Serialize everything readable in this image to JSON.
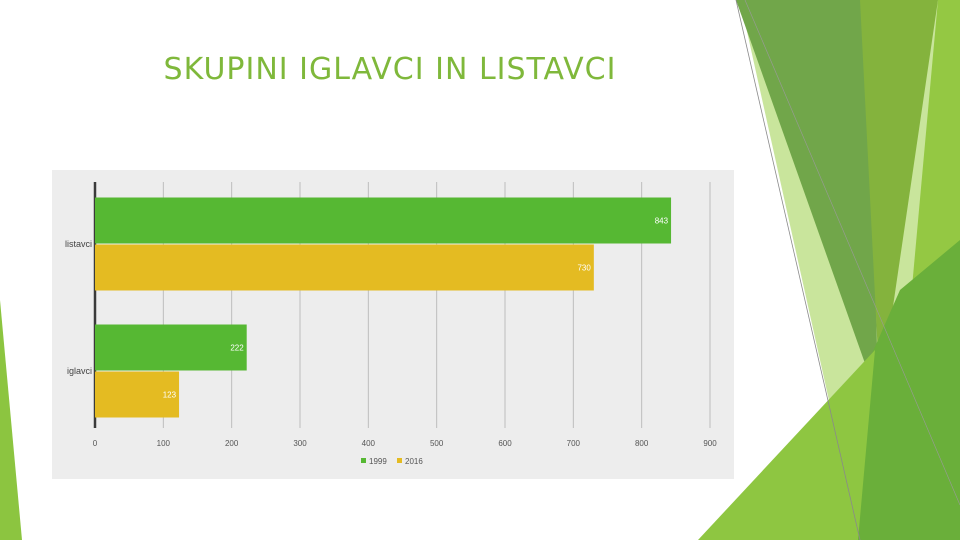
{
  "slide": {
    "title": "SKUPINI IGLAVCI IN LISTAVCI"
  },
  "theme": {
    "accent_green": "#56b833",
    "accent_gold": "#e4bb22",
    "title_color": "#7fb83b"
  },
  "chart_data": {
    "type": "bar",
    "orientation": "horizontal",
    "categories": [
      "listavci",
      "iglavci"
    ],
    "series": [
      {
        "name": "1999",
        "values": [
          843,
          222
        ],
        "color": "#56b833"
      },
      {
        "name": "2016",
        "values": [
          730,
          123
        ],
        "color": "#e4bb22"
      }
    ],
    "xlim": [
      0,
      900
    ],
    "xticks": [
      0,
      100,
      200,
      300,
      400,
      500,
      600,
      700,
      800,
      900
    ],
    "xtick_labels": [
      "0",
      "100",
      "200",
      "300",
      "400",
      "500",
      "600",
      "700",
      "800",
      "900"
    ],
    "grid": true,
    "legend": "bottom",
    "data_labels": true
  }
}
